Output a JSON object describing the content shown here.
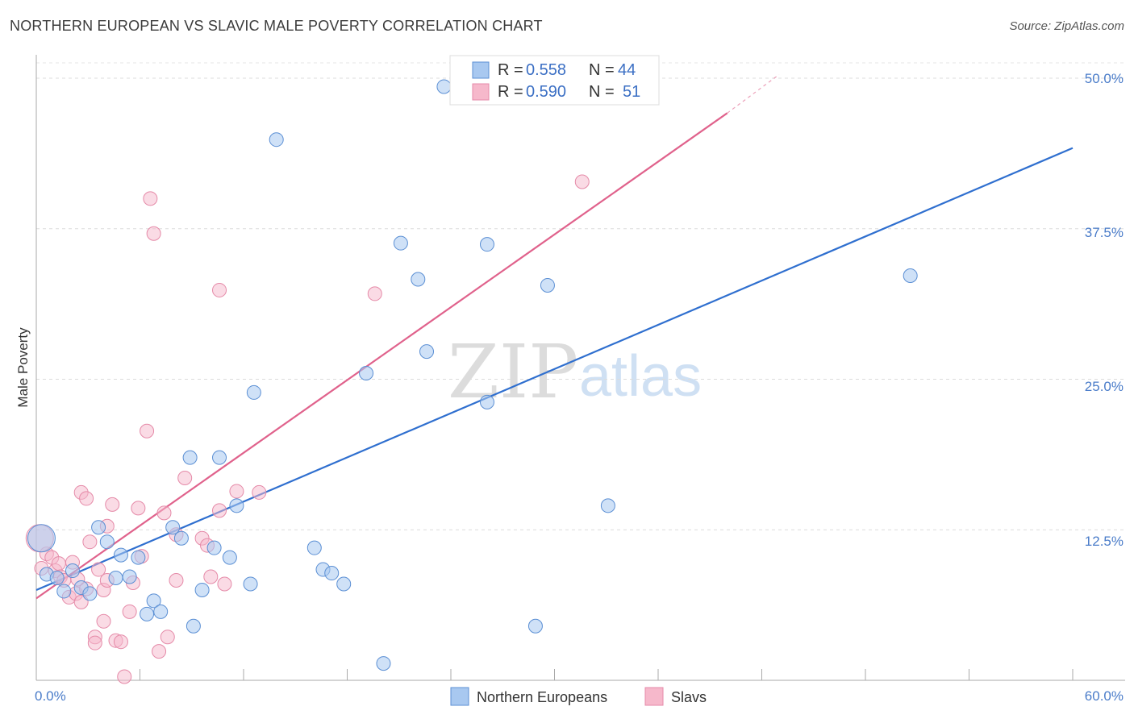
{
  "title": "NORTHERN EUROPEAN VS SLAVIC MALE POVERTY CORRELATION CHART",
  "source": "Source: ZipAtlas.com",
  "watermark": {
    "zip": "ZIP",
    "atlas": "atlas"
  },
  "colors": {
    "blue_fill": "#a8c8f0",
    "blue_stroke": "#5b8fd4",
    "blue_line": "#2f6fcf",
    "pink_fill": "#f6b8cb",
    "pink_stroke": "#e58aa8",
    "pink_line": "#e0628c",
    "tick_text": "#4a7cc9"
  },
  "legend_top": {
    "rows": [
      {
        "r_label": "R =",
        "r_value": "0.558",
        "n_label": "N =",
        "n_value": "44",
        "series": "blue"
      },
      {
        "r_label": "R =",
        "r_value": "0.590",
        "n_label": "N =",
        "n_value": "51",
        "series": "pink"
      }
    ]
  },
  "legend_bottom": [
    {
      "label": "Northern Europeans",
      "series": "blue"
    },
    {
      "label": "Slavs",
      "series": "pink"
    }
  ],
  "chart_data": {
    "type": "scatter",
    "title": "NORTHERN EUROPEAN VS SLAVIC MALE POVERTY CORRELATION CHART",
    "xlabel": "",
    "ylabel": "Male Poverty",
    "xlim": [
      0,
      60
    ],
    "ylim": [
      0,
      52.5
    ],
    "x_tick_labels": [
      "0.0%",
      "60.0%"
    ],
    "y_tick_labels": [
      "12.5%",
      "25.0%",
      "37.5%",
      "50.0%"
    ],
    "y_ticks": [
      12.5,
      25.0,
      37.5,
      50.0
    ],
    "grid": true,
    "series": [
      {
        "name": "Northern Europeans",
        "color": "blue",
        "points": [
          [
            0.3,
            11.8
          ],
          [
            0.6,
            8.8
          ],
          [
            1.2,
            8.5
          ],
          [
            1.6,
            7.4
          ],
          [
            2.1,
            9.1
          ],
          [
            2.6,
            7.7
          ],
          [
            3.1,
            7.2
          ],
          [
            3.6,
            12.7
          ],
          [
            4.1,
            11.5
          ],
          [
            4.6,
            8.5
          ],
          [
            4.9,
            10.4
          ],
          [
            5.4,
            8.6
          ],
          [
            5.9,
            10.2
          ],
          [
            6.4,
            5.5
          ],
          [
            6.8,
            6.6
          ],
          [
            7.2,
            5.7
          ],
          [
            7.9,
            12.7
          ],
          [
            8.4,
            11.8
          ],
          [
            8.9,
            18.5
          ],
          [
            9.1,
            4.5
          ],
          [
            9.6,
            7.5
          ],
          [
            10.3,
            11.0
          ],
          [
            10.6,
            18.5
          ],
          [
            11.2,
            10.2
          ],
          [
            11.6,
            14.5
          ],
          [
            12.4,
            8.0
          ],
          [
            12.6,
            23.9
          ],
          [
            13.9,
            44.9
          ],
          [
            16.1,
            11.0
          ],
          [
            16.6,
            9.2
          ],
          [
            17.1,
            8.9
          ],
          [
            17.8,
            8.0
          ],
          [
            19.1,
            25.5
          ],
          [
            20.1,
            1.4
          ],
          [
            21.1,
            36.3
          ],
          [
            22.1,
            33.3
          ],
          [
            22.6,
            27.3
          ],
          [
            23.6,
            49.3
          ],
          [
            26.1,
            23.1
          ],
          [
            26.1,
            36.2
          ],
          [
            28.9,
            4.5
          ],
          [
            29.6,
            32.8
          ],
          [
            33.1,
            14.5
          ],
          [
            50.6,
            33.6
          ]
        ]
      },
      {
        "name": "Slavs",
        "color": "pink",
        "points": [
          [
            0.3,
            9.3
          ],
          [
            0.6,
            10.5
          ],
          [
            0.9,
            10.2
          ],
          [
            1.1,
            9.1
          ],
          [
            1.3,
            9.7
          ],
          [
            1.4,
            8.6
          ],
          [
            1.6,
            8.3
          ],
          [
            1.9,
            6.9
          ],
          [
            2.1,
            9.8
          ],
          [
            2.3,
            7.2
          ],
          [
            2.4,
            8.4
          ],
          [
            2.6,
            6.5
          ],
          [
            2.6,
            15.6
          ],
          [
            2.9,
            15.1
          ],
          [
            2.9,
            7.6
          ],
          [
            3.1,
            11.5
          ],
          [
            3.4,
            3.6
          ],
          [
            3.4,
            3.1
          ],
          [
            3.6,
            9.2
          ],
          [
            3.9,
            7.5
          ],
          [
            3.9,
            4.9
          ],
          [
            4.1,
            8.3
          ],
          [
            4.1,
            12.8
          ],
          [
            4.4,
            14.6
          ],
          [
            4.6,
            3.3
          ],
          [
            4.9,
            3.2
          ],
          [
            5.1,
            0.3
          ],
          [
            5.4,
            5.7
          ],
          [
            5.6,
            8.1
          ],
          [
            5.9,
            14.3
          ],
          [
            6.1,
            10.3
          ],
          [
            6.4,
            20.7
          ],
          [
            6.6,
            40.0
          ],
          [
            6.8,
            37.1
          ],
          [
            7.1,
            2.4
          ],
          [
            7.4,
            13.9
          ],
          [
            7.6,
            3.6
          ],
          [
            8.1,
            12.1
          ],
          [
            8.1,
            8.3
          ],
          [
            8.6,
            16.8
          ],
          [
            9.6,
            11.8
          ],
          [
            9.9,
            11.2
          ],
          [
            10.1,
            8.6
          ],
          [
            10.6,
            32.4
          ],
          [
            10.6,
            14.1
          ],
          [
            10.9,
            8.0
          ],
          [
            11.6,
            15.7
          ],
          [
            12.9,
            15.6
          ],
          [
            19.6,
            32.1
          ],
          [
            31.6,
            41.4
          ],
          [
            0.2,
            11.8
          ]
        ]
      }
    ],
    "trend_lines": [
      {
        "series": "Northern Europeans",
        "from": [
          0,
          7.5
        ],
        "to": [
          60,
          44.2
        ]
      },
      {
        "series": "Slavs",
        "from": [
          0,
          6.8
        ],
        "to": [
          40,
          47.1
        ],
        "dashed_to": [
          43,
          50.3
        ]
      }
    ]
  }
}
